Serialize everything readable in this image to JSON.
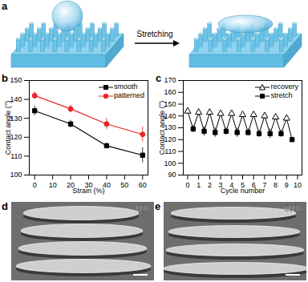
{
  "panel_labels": [
    "a",
    "b",
    "c",
    "d",
    "e"
  ],
  "diagram": {
    "arrow_label": "Stretching"
  },
  "images": [
    {
      "strain_label": "0%"
    },
    {
      "strain_label": "60%"
    }
  ],
  "chart_data": [
    {
      "type": "line",
      "xlabel": "Strain (%)",
      "ylabel": "Contact angle (°)",
      "x": [
        0,
        20,
        40,
        60
      ],
      "series": [
        {
          "name": "smooth",
          "color": "#000000",
          "marker": "square",
          "values": [
            134,
            127,
            115.5,
            110.5
          ],
          "errors": [
            2.5,
            2,
            1.5,
            4
          ]
        },
        {
          "name": "patterned",
          "color": "#e8262b",
          "marker": "circle",
          "values": [
            142,
            135,
            127,
            121.5
          ],
          "errors": [
            2,
            2,
            3,
            4
          ]
        }
      ],
      "xlim": [
        -3,
        63
      ],
      "xticks": [
        0,
        10,
        20,
        30,
        40,
        50,
        60
      ],
      "ylim": [
        100,
        150
      ],
      "yticks": [
        100,
        110,
        120,
        130,
        140,
        150
      ],
      "legend": "top-right"
    },
    {
      "type": "line",
      "xlabel": "Cycle number",
      "ylabel": "Contact angle (°)",
      "color": "#000000",
      "x": [
        0,
        0.5,
        1,
        1.5,
        2,
        2.5,
        3,
        3.5,
        4,
        4.5,
        5,
        5.5,
        6,
        6.5,
        7,
        7.5,
        8,
        8.5,
        9,
        9.5
      ],
      "series": [
        {
          "name": "recovery",
          "color": "#000000",
          "marker": "triangle-open",
          "values": [
            144,
            null,
            143,
            null,
            143,
            null,
            142,
            null,
            142,
            null,
            141,
            null,
            141,
            null,
            140,
            null,
            139,
            null,
            138,
            null
          ],
          "errors": [
            2,
            null,
            2,
            null,
            2,
            null,
            2,
            null,
            2,
            null,
            2,
            null,
            2,
            null,
            2,
            null,
            2,
            null,
            2,
            null
          ]
        },
        {
          "name": "stretch",
          "color": "#000000",
          "marker": "square",
          "values": [
            null,
            129,
            null,
            127,
            null,
            126,
            null,
            127,
            null,
            126,
            null,
            126,
            null,
            125,
            null,
            125,
            null,
            125,
            null,
            120
          ],
          "errors": [
            null,
            3,
            null,
            4,
            null,
            4,
            null,
            3,
            null,
            4,
            null,
            3,
            null,
            3,
            null,
            4,
            null,
            3,
            null,
            2
          ]
        }
      ],
      "xlim": [
        -0.4,
        10.4
      ],
      "xticks": [
        0,
        1,
        2,
        3,
        4,
        5,
        6,
        7,
        8,
        9,
        10
      ],
      "ylim": [
        90,
        170
      ],
      "yticks": [
        90,
        100,
        110,
        120,
        130,
        140,
        150,
        160,
        170
      ],
      "legend": "top-right"
    }
  ]
}
